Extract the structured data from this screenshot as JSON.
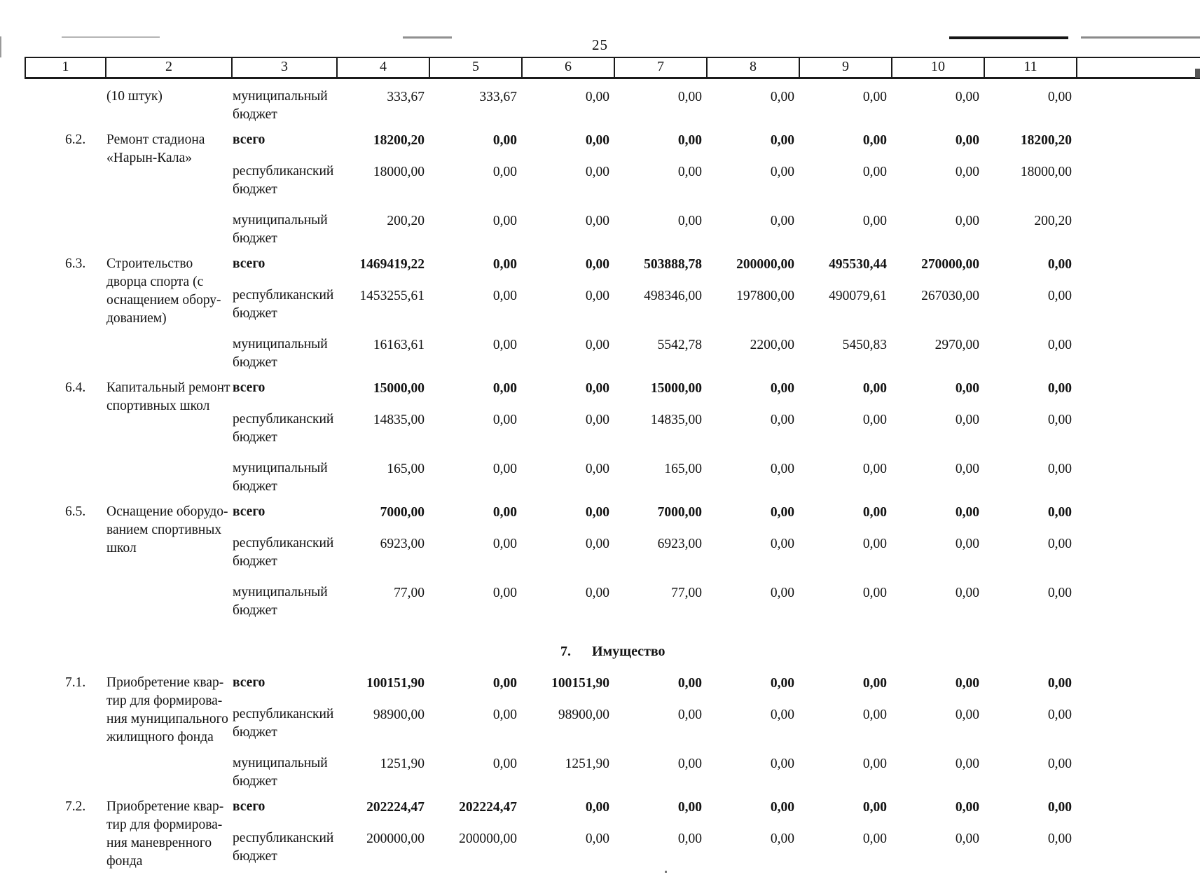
{
  "page": {
    "number": "25"
  },
  "colors": {
    "ink": "#131313",
    "paper": "#ffffff"
  },
  "table": {
    "column_headers": [
      "1",
      "2",
      "3",
      "4",
      "5",
      "6",
      "7",
      "8",
      "9",
      "10",
      "11"
    ],
    "blocks": [
      {
        "type": "rows",
        "num": "",
        "name_lines": [
          "(10 штук)"
        ],
        "rows": [
          {
            "label": "муниципальный бюджет",
            "bold": false,
            "values": [
              "333,67",
              "333,67",
              "0,00",
              "0,00",
              "0,00",
              "0,00",
              "0,00",
              "0,00"
            ]
          }
        ]
      },
      {
        "type": "rows",
        "num": "6.2.",
        "name_lines": [
          "Ремонт стадиона",
          "«Нарын-Кала»"
        ],
        "rows": [
          {
            "label": "всего",
            "bold": true,
            "values": [
              "18200,20",
              "0,00",
              "0,00",
              "0,00",
              "0,00",
              "0,00",
              "0,00",
              "18200,20"
            ]
          },
          {
            "label": "республиканский бюджет",
            "bold": false,
            "values": [
              "18000,00",
              "0,00",
              "0,00",
              "0,00",
              "0,00",
              "0,00",
              "0,00",
              "18000,00"
            ]
          },
          {
            "label": "муниципальный бюджет",
            "bold": false,
            "values": [
              "200,20",
              "0,00",
              "0,00",
              "0,00",
              "0,00",
              "0,00",
              "0,00",
              "200,20"
            ]
          }
        ]
      },
      {
        "type": "rows",
        "num": "6.3.",
        "name_lines": [
          "Строительство",
          "дворца спорта (с",
          "оснащением обору-",
          "дованием)"
        ],
        "rows": [
          {
            "label": "всего",
            "bold": true,
            "values": [
              "1469419,22",
              "0,00",
              "0,00",
              "503888,78",
              "200000,00",
              "495530,44",
              "270000,00",
              "0,00"
            ]
          },
          {
            "label": "республиканский бюджет",
            "bold": false,
            "values": [
              "1453255,61",
              "0,00",
              "0,00",
              "498346,00",
              "197800,00",
              "490079,61",
              "267030,00",
              "0,00"
            ]
          },
          {
            "label": "муниципальный бюджет",
            "bold": false,
            "values": [
              "16163,61",
              "0,00",
              "0,00",
              "5542,78",
              "2200,00",
              "5450,83",
              "2970,00",
              "0,00"
            ]
          }
        ]
      },
      {
        "type": "rows",
        "num": "6.4.",
        "name_lines": [
          "Капитальный ремонт",
          "спортивных школ"
        ],
        "rows": [
          {
            "label": "всего",
            "bold": true,
            "values": [
              "15000,00",
              "0,00",
              "0,00",
              "15000,00",
              "0,00",
              "0,00",
              "0,00",
              "0,00"
            ]
          },
          {
            "label": "республиканский бюджет",
            "bold": false,
            "values": [
              "14835,00",
              "0,00",
              "0,00",
              "14835,00",
              "0,00",
              "0,00",
              "0,00",
              "0,00"
            ]
          },
          {
            "label": "муниципальный бюджет",
            "bold": false,
            "values": [
              "165,00",
              "0,00",
              "0,00",
              "165,00",
              "0,00",
              "0,00",
              "0,00",
              "0,00"
            ]
          }
        ]
      },
      {
        "type": "rows",
        "num": "6.5.",
        "name_lines": [
          "Оснащение оборудо-",
          "ванием спортивных",
          "школ"
        ],
        "rows": [
          {
            "label": "всего",
            "bold": true,
            "values": [
              "7000,00",
              "0,00",
              "0,00",
              "7000,00",
              "0,00",
              "0,00",
              "0,00",
              "0,00"
            ]
          },
          {
            "label": "республиканский бюджет",
            "bold": false,
            "values": [
              "6923,00",
              "0,00",
              "0,00",
              "6923,00",
              "0,00",
              "0,00",
              "0,00",
              "0,00"
            ]
          },
          {
            "label": "муниципальный бюджет",
            "bold": false,
            "values": [
              "77,00",
              "0,00",
              "0,00",
              "77,00",
              "0,00",
              "0,00",
              "0,00",
              "0,00"
            ]
          }
        ]
      },
      {
        "type": "section",
        "num": "7.",
        "title": "Имущество"
      },
      {
        "type": "rows",
        "num": "7.1.",
        "name_lines": [
          "Приобретение квар-",
          "тир для формирова-",
          "ния муниципального",
          "жилищного фонда"
        ],
        "rows": [
          {
            "label": "всего",
            "bold": true,
            "values": [
              "100151,90",
              "0,00",
              "100151,90",
              "0,00",
              "0,00",
              "0,00",
              "0,00",
              "0,00"
            ]
          },
          {
            "label": "республиканский бюджет",
            "bold": false,
            "values": [
              "98900,00",
              "0,00",
              "98900,00",
              "0,00",
              "0,00",
              "0,00",
              "0,00",
              "0,00"
            ]
          },
          {
            "label": "муниципальный бюджет",
            "bold": false,
            "values": [
              "1251,90",
              "0,00",
              "1251,90",
              "0,00",
              "0,00",
              "0,00",
              "0,00",
              "0,00"
            ]
          }
        ]
      },
      {
        "type": "rows",
        "num": "7.2.",
        "name_lines": [
          "Приобретение квар-",
          "тир для формирова-",
          "ния маневренного",
          "фонда"
        ],
        "rows": [
          {
            "label": "всего",
            "bold": true,
            "values": [
              "202224,47",
              "202224,47",
              "0,00",
              "0,00",
              "0,00",
              "0,00",
              "0,00",
              "0,00"
            ]
          },
          {
            "label": "республиканский бюджет",
            "bold": false,
            "values": [
              "200000,00",
              "200000,00",
              "0,00",
              "0,00",
              "0,00",
              "0,00",
              "0,00",
              "0,00"
            ]
          }
        ]
      }
    ]
  }
}
